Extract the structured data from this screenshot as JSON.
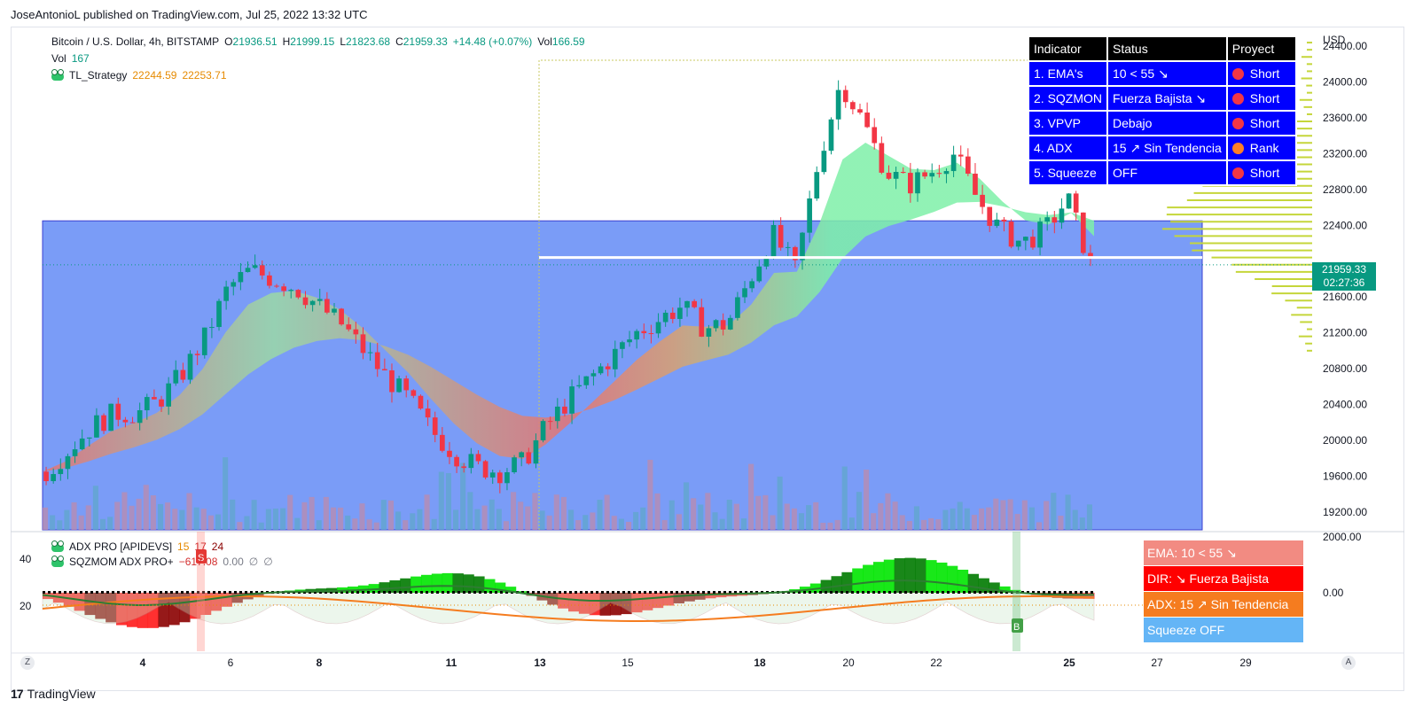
{
  "publish_line": "JoseAntonioL published on TradingView.com, Jul 25, 2022 13:32 UTC",
  "legend": {
    "symbol": "Bitcoin / U.S. Dollar, 4h, BITSTAMP",
    "o_label": "O",
    "o_value": "21936.51",
    "h_label": "H",
    "h_value": "21999.15",
    "l_label": "L",
    "l_value": "21823.68",
    "c_label": "C",
    "c_value": "21959.33",
    "change": "+14.48 (+0.07%)",
    "vol_label": "Vol",
    "vol_value": "166.59",
    "vol2_label": "Vol",
    "vol2_value": "167",
    "strategy_name": "TL_Strategy",
    "strategy_v1": "22244.59",
    "strategy_v2": "22253.71"
  },
  "sub_legend": {
    "adx_name": "ADX PRO [APIDEVS]",
    "adx_v1": "15",
    "adx_v2": "17",
    "adx_v3": "24",
    "sqz_name": "SQZMOM ADX PRO+",
    "sqz_v1": "−617.08",
    "sqz_v2": "0.00",
    "sqz_v3": "∅",
    "sqz_v4": "∅"
  },
  "indicator_table": {
    "headers": [
      "Indicator",
      "Status",
      "Proyect"
    ],
    "rows": [
      {
        "indicator": "1. EMA's",
        "status": "10 < 55 ↘",
        "proyect": "Short",
        "dot_color": "#f23645"
      },
      {
        "indicator": "2. SQZMON",
        "status": "Fuerza Bajista ↘",
        "proyect": "Short",
        "dot_color": "#f23645"
      },
      {
        "indicator": "3. VPVP",
        "status": "Debajo",
        "proyect": "Short",
        "dot_color": "#f23645"
      },
      {
        "indicator": "4. ADX",
        "status": "15 ↗ Sin Tendencia",
        "proyect": "Rank",
        "dot_color": "#ff7f27"
      },
      {
        "indicator": "5. Squeeze",
        "status": "OFF",
        "proyect": "Short",
        "dot_color": "#f23645"
      }
    ]
  },
  "status_panel": [
    {
      "text": "EMA: 10 < 55 ↘",
      "bg": "#f28b82"
    },
    {
      "text": "DIR: ↘ Fuerza Bajista",
      "bg": "#ff0000"
    },
    {
      "text": "ADX: 15 ↗ Sin Tendencia",
      "bg": "#f57c1f"
    },
    {
      "text": "Squeeze OFF",
      "bg": "#64b5f6"
    }
  ],
  "price_axis": {
    "currency": "USD",
    "ticks": [
      "24400.00",
      "24000.00",
      "23600.00",
      "23200.00",
      "22800.00",
      "22400.00",
      "21600.00",
      "21200.00",
      "20800.00",
      "20400.00",
      "20000.00",
      "19600.00",
      "19200.00"
    ],
    "last_price": "21959.33",
    "countdown": "02:27:36"
  },
  "sub_axis": {
    "right_ticks": [
      "2000.00",
      "0.00"
    ],
    "left_ticks": [
      "40",
      "20"
    ]
  },
  "time_axis": {
    "labels": [
      "4",
      "6",
      "8",
      "11",
      "13",
      "15",
      "18",
      "20",
      "22",
      "25",
      "27",
      "29"
    ],
    "bold": [
      "4",
      "8",
      "11",
      "13",
      "18",
      "25"
    ]
  },
  "markers": {
    "sell": "S",
    "buy": "B"
  },
  "nav": {
    "left": "Z",
    "right": "A"
  },
  "brand": "TradingView",
  "colors": {
    "up": "#089981",
    "down": "#f23645",
    "zone": "#7a9cf7",
    "bull_ribbon": "#7ef0a8",
    "bear_ribbon": "#e57373"
  },
  "chart_data": {
    "type": "candlestick",
    "title": "Bitcoin / U.S. Dollar, 4h, BITSTAMP",
    "ylabel": "USD",
    "ylim": [
      19000,
      24500
    ],
    "x_labels": [
      "4",
      "6",
      "8",
      "11",
      "13",
      "15",
      "18",
      "20",
      "22",
      "25",
      "27",
      "29"
    ],
    "close_series": [
      19650,
      19900,
      20150,
      20300,
      20300,
      20450,
      20750,
      21150,
      21700,
      21900,
      21800,
      21700,
      21500,
      21300,
      21000,
      20700,
      20450,
      20100,
      19850,
      19700,
      19650,
      19750,
      20150,
      20450,
      20700,
      20950,
      21200,
      21350,
      21500,
      21250,
      21300,
      21800,
      22300,
      21900,
      23100,
      24000,
      23550,
      23000,
      22850,
      23000,
      23200,
      22700,
      22350,
      22200,
      22350,
      22700,
      21959
    ],
    "last_close": 21959.33,
    "zone": {
      "top": 22450,
      "bottom": 19000
    },
    "reference_line": 22040,
    "volume_profile": true
  }
}
